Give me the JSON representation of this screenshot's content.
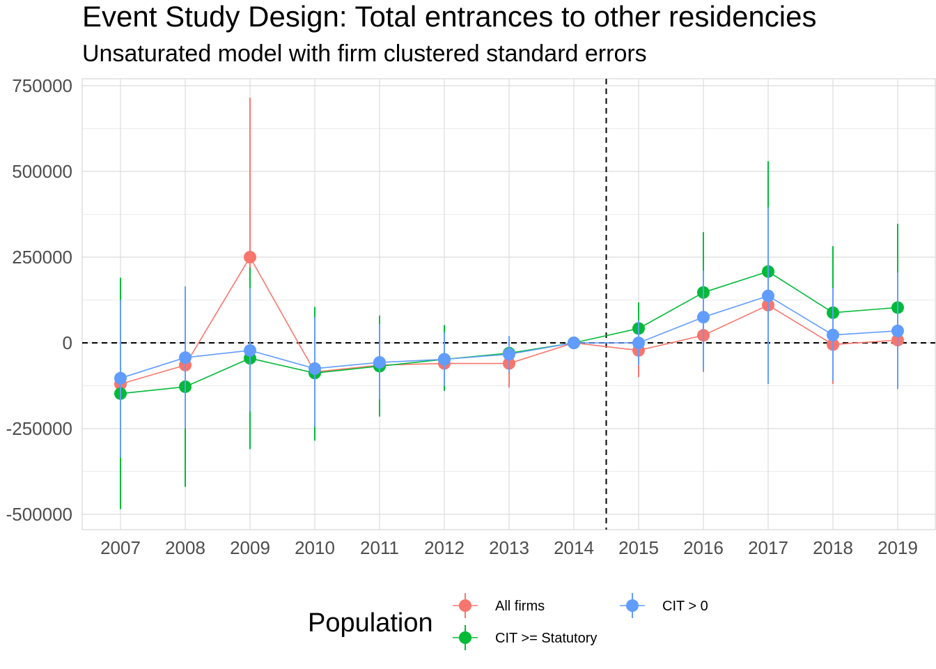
{
  "chart_data": {
    "type": "line",
    "title": "Event Study Design: Total entrances to other residencies",
    "subtitle": "Unsaturated model with firm clustered standard errors",
    "xlabel": "",
    "ylabel": "",
    "categories": [
      "2007",
      "2008",
      "2009",
      "2010",
      "2011",
      "2012",
      "2013",
      "2014",
      "2015",
      "2016",
      "2017",
      "2018",
      "2019"
    ],
    "y_ticks": [
      750000,
      500000,
      250000,
      0,
      -250000,
      -500000
    ],
    "y_tick_labels": [
      "750000",
      "500000",
      "250000",
      "0",
      "-250000",
      "-500000"
    ],
    "ylim": [
      -545000,
      770000
    ],
    "reference_lines": {
      "horizontal_y": 0,
      "vertical_between": [
        "2014",
        "2015"
      ],
      "style": "dashed"
    },
    "grid": true,
    "legend": {
      "title": "Population",
      "placement": "bottom"
    },
    "series": [
      {
        "name": "All firms",
        "color": "#F8766D",
        "values": [
          -120000,
          -65000,
          250000,
          -85000,
          -65000,
          -60000,
          -60000,
          0,
          -22000,
          22000,
          110000,
          -5000,
          8000
        ],
        "lower": [
          -330000,
          -240000,
          -210000,
          -280000,
          -210000,
          -140000,
          -130000,
          0,
          -100000,
          -85000,
          -40000,
          -120000,
          -110000
        ],
        "upper": [
          125000,
          150000,
          715000,
          100000,
          80000,
          40000,
          10000,
          0,
          65000,
          200000,
          310000,
          150000,
          150000
        ]
      },
      {
        "name": "CIT >= Statutory",
        "color": "#00BA38",
        "values": [
          -148000,
          -128000,
          -45000,
          -88000,
          -68000,
          -48000,
          -30000,
          0,
          42000,
          147000,
          208000,
          88000,
          103000
        ],
        "lower": [
          -485000,
          -420000,
          -310000,
          -285000,
          -215000,
          -140000,
          -80000,
          0,
          -50000,
          -40000,
          -60000,
          -90000,
          -120000
        ],
        "upper": [
          190000,
          160000,
          220000,
          105000,
          78000,
          52000,
          15000,
          0,
          118000,
          323000,
          530000,
          282000,
          347000
        ]
      },
      {
        "name": "CIT > 0",
        "color": "#619CFF",
        "values": [
          -103000,
          -43000,
          -22000,
          -75000,
          -57000,
          -48000,
          -33000,
          0,
          0,
          75000,
          137000,
          23000,
          35000
        ],
        "lower": [
          -335000,
          -250000,
          -200000,
          -245000,
          -165000,
          -125000,
          -85000,
          0,
          -65000,
          -80000,
          -120000,
          -110000,
          -135000
        ],
        "upper": [
          125000,
          165000,
          160000,
          75000,
          55000,
          30000,
          20000,
          0,
          65000,
          210000,
          395000,
          160000,
          205000
        ]
      }
    ]
  }
}
